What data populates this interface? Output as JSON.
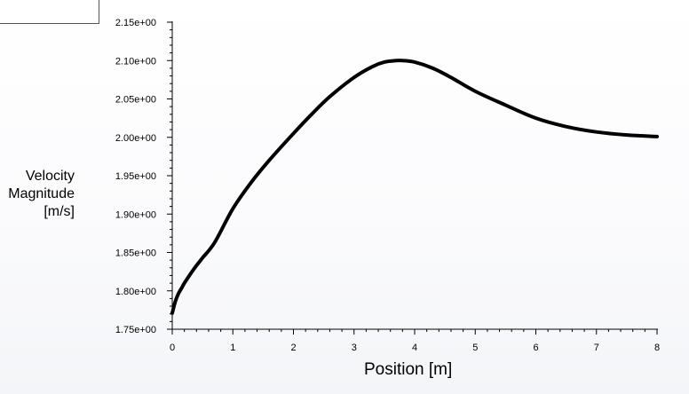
{
  "chart_data": {
    "type": "line",
    "title": "",
    "xlabel": "Position [m]",
    "ylabel_lines": [
      "Velocity",
      "Magnitude",
      "[m/s]"
    ],
    "xlim": [
      0,
      8
    ],
    "ylim": [
      1.75,
      2.15
    ],
    "x_ticks": [
      0,
      1,
      2,
      3,
      4,
      5,
      6,
      7,
      8
    ],
    "x_tick_labels": [
      "0",
      "1",
      "2",
      "3",
      "4",
      "5",
      "6",
      "7",
      "8"
    ],
    "y_ticks": [
      1.75,
      1.8,
      1.85,
      1.9,
      1.95,
      2.0,
      2.05,
      2.1,
      2.15
    ],
    "y_tick_labels": [
      "1.75e+00",
      "1.80e+00",
      "1.85e+00",
      "1.90e+00",
      "1.95e+00",
      "2.00e+00",
      "2.05e+00",
      "2.10e+00",
      "2.15e+00"
    ],
    "grid": false,
    "series": [
      {
        "color": "#000000",
        "x": [
          0.0,
          0.05,
          0.1,
          0.15,
          0.2,
          0.3,
          0.4,
          0.5,
          0.7,
          1.0,
          1.3,
          1.6,
          2.0,
          2.3,
          2.6,
          3.0,
          3.3,
          3.5,
          3.7,
          3.8,
          4.0,
          4.3,
          4.6,
          5.0,
          5.5,
          6.0,
          6.5,
          7.0,
          7.5,
          8.0
        ],
        "y": [
          1.771,
          1.786,
          1.796,
          1.803,
          1.81,
          1.822,
          1.833,
          1.843,
          1.863,
          1.907,
          1.941,
          1.97,
          2.005,
          2.03,
          2.053,
          2.078,
          2.092,
          2.098,
          2.1,
          2.1,
          2.098,
          2.09,
          2.078,
          2.06,
          2.042,
          2.025,
          2.014,
          2.007,
          2.003,
          2.001
        ]
      }
    ]
  }
}
